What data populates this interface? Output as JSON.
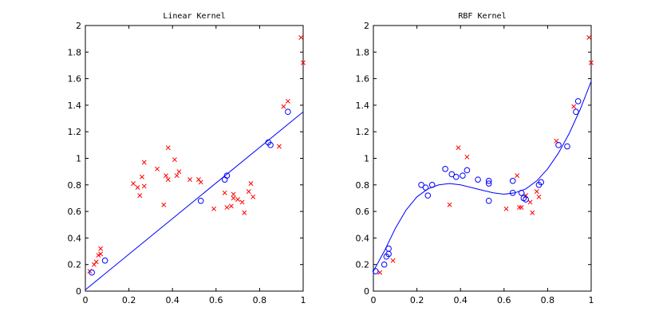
{
  "chart_data": [
    {
      "type": "scatter",
      "title": "Linear Kernel",
      "xlabel": "",
      "ylabel": "",
      "xlim": [
        0,
        1
      ],
      "ylim": [
        0,
        2
      ],
      "xticks": [
        "0",
        "0.2",
        "0.4",
        "0.6",
        "0.8",
        "1"
      ],
      "yticks": [
        "0",
        "0.2",
        "0.4",
        "0.6",
        "0.8",
        "1",
        "1.2",
        "1.4",
        "1.6",
        "1.8",
        "2"
      ],
      "grid": false,
      "series": [
        {
          "marker": "x",
          "color": "#ff0000",
          "points": [
            [
              0.02,
              0.15
            ],
            [
              0.04,
              0.2
            ],
            [
              0.05,
              0.22
            ],
            [
              0.06,
              0.27
            ],
            [
              0.07,
              0.28
            ],
            [
              0.07,
              0.32
            ],
            [
              0.22,
              0.81
            ],
            [
              0.24,
              0.78
            ],
            [
              0.25,
              0.72
            ],
            [
              0.26,
              0.86
            ],
            [
              0.27,
              0.79
            ],
            [
              0.27,
              0.97
            ],
            [
              0.33,
              0.92
            ],
            [
              0.36,
              0.65
            ],
            [
              0.37,
              0.87
            ],
            [
              0.38,
              0.84
            ],
            [
              0.38,
              1.08
            ],
            [
              0.41,
              0.99
            ],
            [
              0.42,
              0.87
            ],
            [
              0.43,
              0.9
            ],
            [
              0.48,
              0.84
            ],
            [
              0.52,
              0.84
            ],
            [
              0.53,
              0.82
            ],
            [
              0.59,
              0.62
            ],
            [
              0.64,
              0.74
            ],
            [
              0.65,
              0.63
            ],
            [
              0.67,
              0.64
            ],
            [
              0.68,
              0.7
            ],
            [
              0.68,
              0.73
            ],
            [
              0.7,
              0.69
            ],
            [
              0.72,
              0.67
            ],
            [
              0.73,
              0.59
            ],
            [
              0.75,
              0.75
            ],
            [
              0.76,
              0.81
            ],
            [
              0.77,
              0.71
            ],
            [
              0.89,
              1.09
            ],
            [
              0.91,
              1.39
            ],
            [
              0.93,
              1.43
            ],
            [
              0.99,
              1.91
            ],
            [
              1.0,
              1.72
            ]
          ]
        },
        {
          "marker": "o",
          "color": "#0000ff",
          "points": [
            [
              0.03,
              0.14
            ],
            [
              0.09,
              0.23
            ],
            [
              0.53,
              0.68
            ],
            [
              0.64,
              0.84
            ],
            [
              0.65,
              0.87
            ],
            [
              0.84,
              1.12
            ],
            [
              0.85,
              1.1
            ],
            [
              0.93,
              1.35
            ]
          ]
        },
        {
          "marker": "line",
          "color": "#0000ff",
          "points": [
            [
              0,
              0.01
            ],
            [
              1,
              1.35
            ]
          ]
        }
      ]
    },
    {
      "type": "scatter",
      "title": "RBF Kernel",
      "xlabel": "",
      "ylabel": "",
      "xlim": [
        0,
        1
      ],
      "ylim": [
        0,
        2
      ],
      "xticks": [
        "0",
        "0.2",
        "0.4",
        "0.6",
        "0.8",
        "1"
      ],
      "yticks": [
        "0",
        "0.2",
        "0.4",
        "0.6",
        "0.8",
        "1",
        "1.2",
        "1.4",
        "1.6",
        "1.8",
        "2"
      ],
      "grid": false,
      "series": [
        {
          "marker": "x",
          "color": "#ff0000",
          "points": [
            [
              0.03,
              0.14
            ],
            [
              0.09,
              0.23
            ],
            [
              0.35,
              0.65
            ],
            [
              0.39,
              1.08
            ],
            [
              0.43,
              1.01
            ],
            [
              0.61,
              0.62
            ],
            [
              0.66,
              0.87
            ],
            [
              0.67,
              0.63
            ],
            [
              0.68,
              0.63
            ],
            [
              0.7,
              0.72
            ],
            [
              0.72,
              0.67
            ],
            [
              0.73,
              0.59
            ],
            [
              0.75,
              0.75
            ],
            [
              0.76,
              0.71
            ],
            [
              0.84,
              1.13
            ],
            [
              0.92,
              1.39
            ],
            [
              0.99,
              1.91
            ],
            [
              1.0,
              1.72
            ]
          ]
        },
        {
          "marker": "o",
          "color": "#0000ff",
          "points": [
            [
              0.01,
              0.15
            ],
            [
              0.05,
              0.2
            ],
            [
              0.06,
              0.26
            ],
            [
              0.07,
              0.28
            ],
            [
              0.07,
              0.32
            ],
            [
              0.22,
              0.8
            ],
            [
              0.24,
              0.78
            ],
            [
              0.25,
              0.72
            ],
            [
              0.27,
              0.8
            ],
            [
              0.33,
              0.92
            ],
            [
              0.36,
              0.88
            ],
            [
              0.38,
              0.86
            ],
            [
              0.41,
              0.87
            ],
            [
              0.43,
              0.91
            ],
            [
              0.48,
              0.84
            ],
            [
              0.53,
              0.83
            ],
            [
              0.53,
              0.81
            ],
            [
              0.53,
              0.68
            ],
            [
              0.64,
              0.83
            ],
            [
              0.64,
              0.74
            ],
            [
              0.68,
              0.74
            ],
            [
              0.69,
              0.7
            ],
            [
              0.7,
              0.69
            ],
            [
              0.76,
              0.8
            ],
            [
              0.77,
              0.82
            ],
            [
              0.85,
              1.1
            ],
            [
              0.89,
              1.09
            ],
            [
              0.93,
              1.35
            ],
            [
              0.94,
              1.43
            ]
          ]
        },
        {
          "marker": "line",
          "color": "#0000ff",
          "points": [
            [
              0,
              0.15
            ],
            [
              0.05,
              0.3
            ],
            [
              0.1,
              0.47
            ],
            [
              0.15,
              0.61
            ],
            [
              0.2,
              0.71
            ],
            [
              0.25,
              0.77
            ],
            [
              0.3,
              0.8
            ],
            [
              0.35,
              0.81
            ],
            [
              0.4,
              0.8
            ],
            [
              0.45,
              0.78
            ],
            [
              0.5,
              0.76
            ],
            [
              0.55,
              0.74
            ],
            [
              0.6,
              0.73
            ],
            [
              0.65,
              0.74
            ],
            [
              0.7,
              0.77
            ],
            [
              0.75,
              0.83
            ],
            [
              0.8,
              0.92
            ],
            [
              0.85,
              1.04
            ],
            [
              0.9,
              1.19
            ],
            [
              0.95,
              1.37
            ],
            [
              1.0,
              1.58
            ]
          ]
        }
      ]
    }
  ]
}
